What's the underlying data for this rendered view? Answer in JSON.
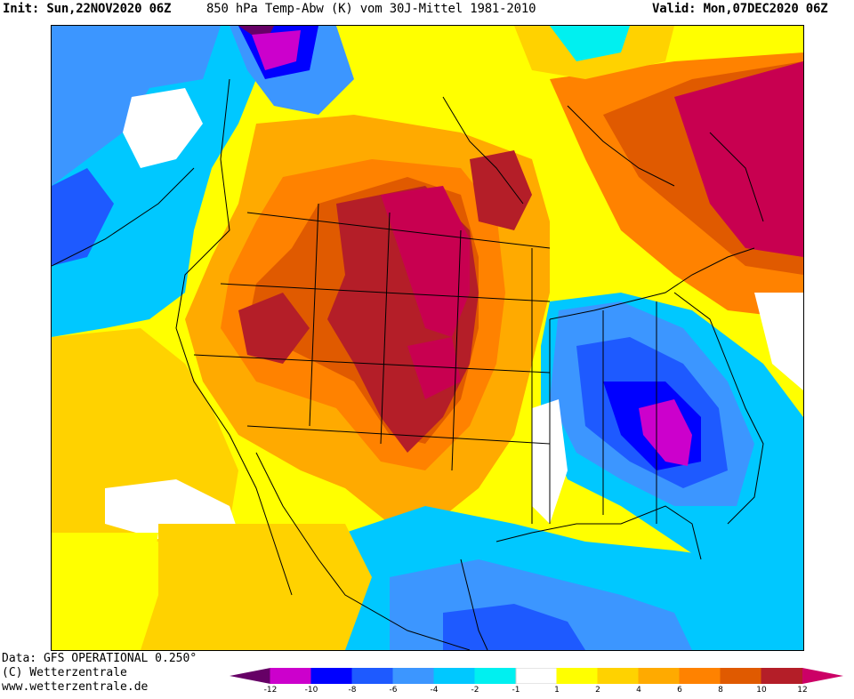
{
  "header": {
    "init": "Init: Sun,22NOV2020 06Z",
    "title": "850 hPa Temp-Abw (K) vom 30J-Mittel 1981-2010",
    "valid": "Valid: Mon,07DEC2020 06Z"
  },
  "footer": {
    "line1": "Data: GFS OPERATIONAL 0.250°",
    "line2": "(C) Wetterzentrale",
    "line3": "www.wetterzentrale.de"
  },
  "legend": {
    "ticks": [
      "-12",
      "-10",
      "-8",
      "-6",
      "-4",
      "-2",
      "-1",
      "1",
      "2",
      "4",
      "6",
      "8",
      "10",
      "12"
    ],
    "colors": [
      "#660066",
      "#cc00cc",
      "#0000ff",
      "#1e5aff",
      "#3c96ff",
      "#00c8ff",
      "#00f0f0",
      "#ffffff",
      "#ffff00",
      "#ffd200",
      "#ffaa00",
      "#ff8200",
      "#e05a00",
      "#b41e28",
      "#cc0066"
    ]
  },
  "map_colors": {
    "very_warm": "#b41e28",
    "warm_magenta": "#c80050",
    "cold_core": "#cc00cc"
  }
}
